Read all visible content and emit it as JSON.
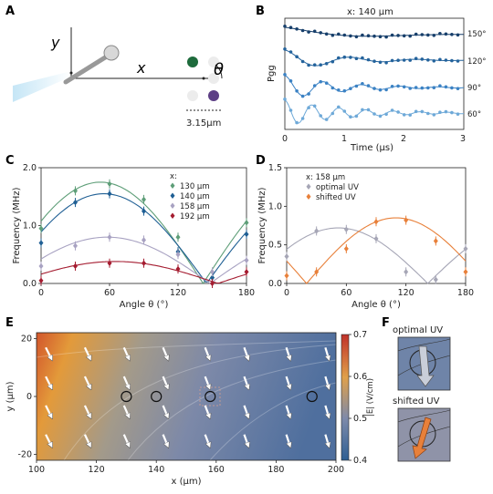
{
  "panels": {
    "A": {
      "letter": "A",
      "x_label": "x",
      "y_label": "y",
      "theta": "θ",
      "scale_label": "3.15μm"
    },
    "B": {
      "letter": "B",
      "title": "x: 140 μm",
      "ylabel": "Pgg",
      "xlabel": "Time (μs)",
      "xticks": [
        "0",
        "1",
        "2",
        "3"
      ],
      "angle_labels": [
        "150°",
        "120°",
        "90°",
        "60°"
      ]
    },
    "C": {
      "letter": "C"
    },
    "D": {
      "letter": "D"
    },
    "E": {
      "letter": "E"
    },
    "F": {
      "letter": "F",
      "optimal_label": "optimal UV",
      "shifted_label": "shifted UV"
    }
  },
  "colors": {
    "c130": "#5e9e78",
    "c140": "#1f5f94",
    "c158": "#a8a2c2",
    "c192": "#a51c30",
    "optimal": "#a6a6b6",
    "shifted": "#e8803a",
    "b150": "#173f6b",
    "b120": "#24639c",
    "b90": "#3b82c4",
    "b60": "#6ea9d8"
  },
  "chart_data": [
    {
      "id": "C",
      "type": "scatter",
      "xlabel": "Angle θ (°)",
      "ylabel": "Frequency (MHz)",
      "xlim": [
        0,
        180
      ],
      "ylim": [
        0,
        2.0
      ],
      "xticks": [
        "0",
        "60",
        "120",
        "180"
      ],
      "yticks": [
        "0.0",
        "1.0",
        "2.0"
      ],
      "legend_title": "x:",
      "x": [
        0,
        30,
        60,
        90,
        120,
        150,
        180
      ],
      "series": [
        {
          "name": "130 μm",
          "color": "#5e9e78",
          "y": [
            0.95,
            1.6,
            1.72,
            1.45,
            0.8,
            0.1,
            1.05
          ]
        },
        {
          "name": "140 μm",
          "color": "#1f5f94",
          "y": [
            0.7,
            1.4,
            1.55,
            1.25,
            0.55,
            0.1,
            0.85
          ]
        },
        {
          "name": "158 μm",
          "color": "#a8a2c2",
          "y": [
            0.3,
            0.65,
            0.8,
            0.75,
            0.5,
            0.2,
            0.4
          ]
        },
        {
          "name": "192 μm",
          "color": "#a51c30",
          "y": [
            0.05,
            0.3,
            0.35,
            0.35,
            0.25,
            0.0,
            0.2
          ]
        }
      ],
      "fits": [
        {
          "color": "#5e9e78",
          "amp": 1.75,
          "phase": 52
        },
        {
          "color": "#1f5f94",
          "amp": 1.55,
          "phase": 55
        },
        {
          "color": "#a8a2c2",
          "amp": 0.8,
          "phase": 58
        },
        {
          "color": "#a51c30",
          "amp": 0.38,
          "phase": 65
        }
      ]
    },
    {
      "id": "D",
      "type": "scatter",
      "xlabel": "Angle θ (°)",
      "ylabel": "Frequency (MHz)",
      "xlim": [
        0,
        180
      ],
      "ylim": [
        0,
        1.5
      ],
      "xticks": [
        "0",
        "60",
        "120",
        "180"
      ],
      "yticks": [
        "0.0",
        "0.5",
        "1.0",
        "1.5"
      ],
      "legend_title": "x: 158 μm",
      "series": [
        {
          "name": "optimal UV",
          "color": "#a6a6b6",
          "x": [
            0,
            30,
            60,
            90,
            120,
            150,
            180
          ],
          "y": [
            0.35,
            0.68,
            0.7,
            0.58,
            0.15,
            0.05,
            0.45
          ]
        },
        {
          "name": "shifted UV",
          "color": "#e8803a",
          "x": [
            0,
            30,
            60,
            90,
            120,
            150,
            180
          ],
          "y": [
            0.1,
            0.15,
            0.45,
            0.8,
            0.82,
            0.55,
            0.15
          ]
        }
      ],
      "fits": [
        {
          "color": "#a6a6b6",
          "amp": 0.72,
          "phase": 52
        },
        {
          "color": "#e8803a",
          "amp": 0.85,
          "phase": 110
        }
      ]
    },
    {
      "id": "E",
      "type": "heatmap",
      "xlabel": "x (μm)",
      "ylabel": "y (μm)",
      "xlim": [
        100,
        200
      ],
      "ylim": [
        -22,
        22
      ],
      "xticks": [
        "100",
        "120",
        "140",
        "160",
        "180",
        "200"
      ],
      "yticks": [
        "-20",
        "0",
        "20"
      ],
      "colorbar_label": "|E| (V/cm)",
      "colorbar_range": [
        0.4,
        0.7
      ],
      "colorbar_ticks": [
        "0.4",
        "0.5",
        "0.6",
        "0.7"
      ],
      "circles_x": [
        130,
        140,
        158,
        192
      ]
    }
  ]
}
